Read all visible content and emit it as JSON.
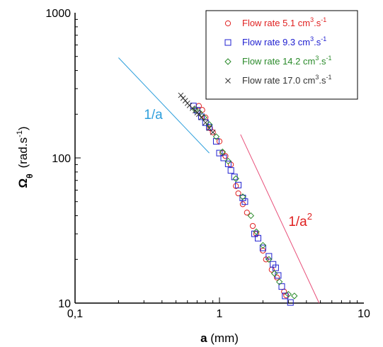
{
  "chart_data": {
    "type": "scatter",
    "x_scale": "log",
    "y_scale": "log",
    "xlim": [
      0.1,
      10
    ],
    "ylim": [
      10,
      1000
    ],
    "x_ticks": [
      "0,1",
      "1",
      "10"
    ],
    "y_ticks": [
      "10",
      "100",
      "1000"
    ],
    "xlabel": {
      "bold": "a",
      "rest": " (mm)"
    },
    "ylabel": {
      "bold": "Ω",
      "subscript": "θ",
      "rest": "(rad.s",
      "superscript": "-1",
      "close": ")"
    },
    "grid": false,
    "legend_position": "top-right",
    "series": [
      {
        "name": "Flow rate 5.1 cm3.s-1",
        "legend": {
          "prefix": "Flow rate 5.1 cm",
          "sup1": "3",
          "mid": ".s",
          "sup2": "-1"
        },
        "marker": "circle",
        "color": "#e02020",
        "points": [
          [
            0.72,
            228
          ],
          [
            0.76,
            214
          ],
          [
            0.8,
            190
          ],
          [
            0.86,
            160
          ],
          [
            0.9,
            150
          ],
          [
            1.0,
            130
          ],
          [
            1.05,
            108
          ],
          [
            1.1,
            103
          ],
          [
            1.2,
            90
          ],
          [
            1.3,
            64
          ],
          [
            1.35,
            57
          ],
          [
            1.45,
            48
          ],
          [
            1.55,
            42
          ],
          [
            1.7,
            34
          ],
          [
            1.8,
            30
          ],
          [
            2.0,
            23
          ],
          [
            2.1,
            20
          ],
          [
            2.3,
            17
          ],
          [
            2.5,
            15
          ],
          [
            2.8,
            12
          ],
          [
            2.9,
            11.3
          ]
        ]
      },
      {
        "name": "Flow rate 9.3 cm3.s-1",
        "legend": {
          "prefix": "Flow rate 9.3 cm",
          "sup1": "3",
          "mid": ".s",
          "sup2": "-1"
        },
        "marker": "square",
        "color": "#2020d0",
        "points": [
          [
            0.66,
            228
          ],
          [
            0.7,
            213
          ],
          [
            0.75,
            192
          ],
          [
            0.8,
            175
          ],
          [
            0.85,
            163
          ],
          [
            0.95,
            130
          ],
          [
            1.0,
            108
          ],
          [
            1.07,
            100
          ],
          [
            1.15,
            91
          ],
          [
            1.2,
            82
          ],
          [
            1.27,
            74
          ],
          [
            1.35,
            65
          ],
          [
            1.45,
            53
          ],
          [
            1.5,
            50
          ],
          [
            1.75,
            30
          ],
          [
            1.85,
            28
          ],
          [
            2.0,
            24
          ],
          [
            2.2,
            21
          ],
          [
            2.35,
            18.5
          ],
          [
            2.45,
            17.5
          ],
          [
            2.55,
            15.5
          ],
          [
            2.7,
            13
          ],
          [
            2.85,
            11.2
          ],
          [
            3.1,
            10.1
          ]
        ]
      },
      {
        "name": "Flow rate 14.2 cm3.s-1",
        "legend": {
          "prefix": "Flow rate 14.2 cm",
          "sup1": "3",
          "mid": ".s",
          "sup2": "-1"
        },
        "marker": "diamond",
        "color": "#2a8a2a",
        "points": [
          [
            0.68,
            215
          ],
          [
            0.73,
            205
          ],
          [
            0.78,
            190
          ],
          [
            0.85,
            170
          ],
          [
            0.95,
            140
          ],
          [
            1.05,
            110
          ],
          [
            1.15,
            95
          ],
          [
            1.3,
            72
          ],
          [
            1.45,
            54
          ],
          [
            1.65,
            40
          ],
          [
            1.8,
            31
          ],
          [
            2.0,
            25
          ],
          [
            2.2,
            20
          ],
          [
            2.4,
            16
          ],
          [
            2.6,
            14
          ],
          [
            3.0,
            11.5
          ],
          [
            3.3,
            11.2
          ]
        ]
      },
      {
        "name": "Flow rate 17.0 cm3.s-1",
        "legend": {
          "prefix": "Flow rate 17.0 cm",
          "sup1": "3",
          "mid": ".s",
          "sup2": "-1"
        },
        "marker": "x",
        "color": "#333333",
        "points": [
          [
            0.54,
            270
          ],
          [
            0.56,
            258
          ],
          [
            0.58,
            248
          ],
          [
            0.6,
            238
          ],
          [
            0.62,
            230
          ],
          [
            0.65,
            220
          ],
          [
            0.68,
            212
          ],
          [
            0.7,
            205
          ],
          [
            0.72,
            200
          ],
          [
            0.75,
            190
          ],
          [
            0.8,
            175
          ],
          [
            0.85,
            160
          ],
          [
            0.9,
            150
          ]
        ]
      }
    ],
    "reference_lines": [
      {
        "label": "1/a",
        "color": "#2e9fdc",
        "x": [
          0.2,
          0.85
        ],
        "y": [
          490,
          108
        ]
      },
      {
        "label": "1/a",
        "label_sup": "2",
        "color": "#e8507a",
        "x": [
          1.4,
          4.9
        ],
        "y": [
          145,
          10
        ]
      }
    ],
    "annotations": [
      {
        "text": "1/a",
        "sup": "",
        "color": "#2e9fdc",
        "x": 0.3,
        "y": 185
      },
      {
        "text": "1/a",
        "sup": "2",
        "color": "#e02020",
        "x": 3.0,
        "y": 34
      }
    ]
  }
}
